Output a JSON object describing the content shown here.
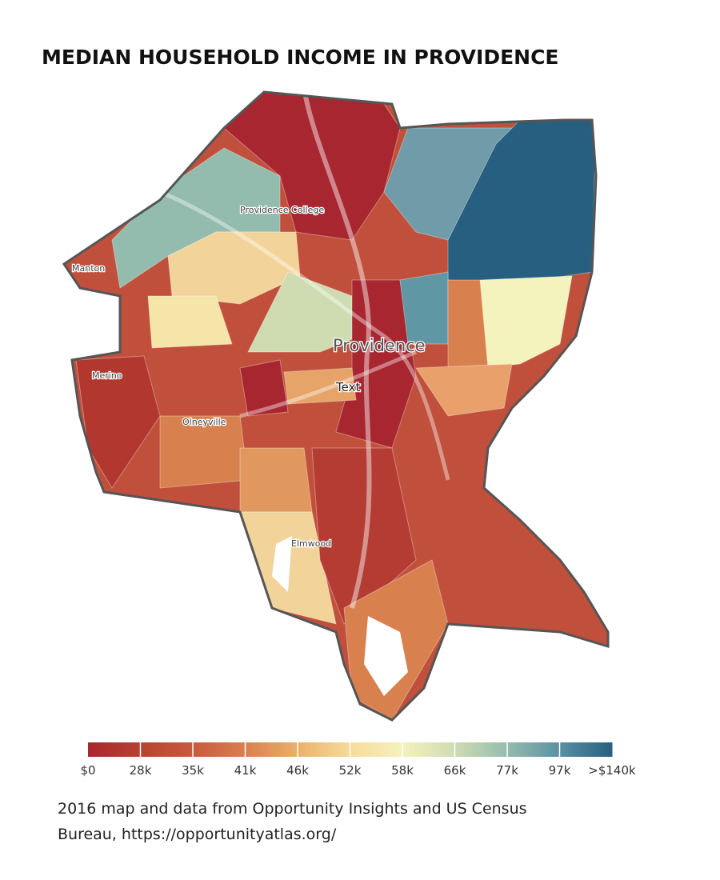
{
  "title": "MEDIAN HOUSEHOLD INCOME IN PROVIDENCE",
  "map": {
    "places": [
      "Manton",
      "Providence College",
      "Providence",
      "Text",
      "Merino",
      "Olneyville",
      "Elmwood"
    ]
  },
  "legend": {
    "labels": [
      "$0",
      "28k",
      "35k",
      "41k",
      "46k",
      "52k",
      "58k",
      "66k",
      "77k",
      "97k",
      ">$140k"
    ],
    "colors": [
      "#a8262f",
      "#b9412f",
      "#c85a3e",
      "#d9804f",
      "#eab06c",
      "#f6dc9a",
      "#f4f2bd",
      "#cfdcb2",
      "#93bcae",
      "#5b90a2",
      "#275f80"
    ]
  },
  "caption": [
    "2016 map and data from Opportunity Insights and US Census",
    "Bureau,  https://opportunityatlas.org/"
  ]
}
